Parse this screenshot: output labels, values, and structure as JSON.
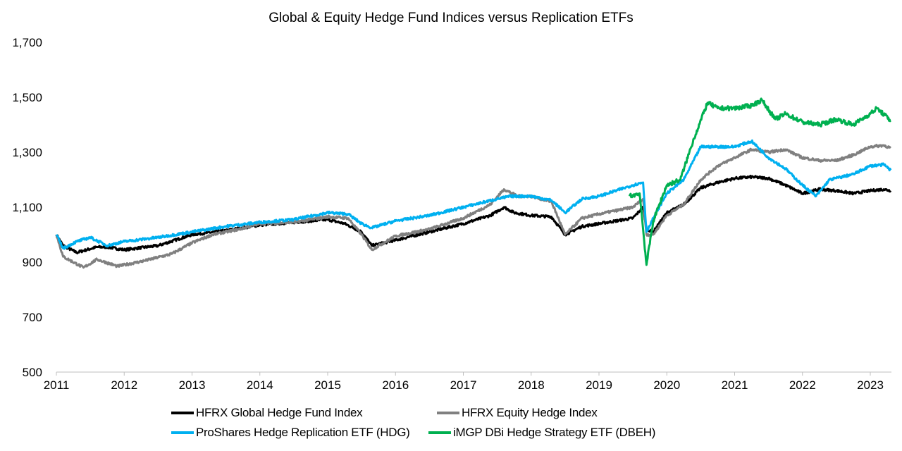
{
  "chart_data": {
    "type": "line",
    "title": "Global & Equity Hedge Fund Indices versus Replication ETFs",
    "xlabel": "",
    "ylabel": "",
    "xlim": [
      2011,
      2023.3
    ],
    "ylim": [
      500,
      1700
    ],
    "x_ticks": [
      "2011",
      "2012",
      "2013",
      "2014",
      "2015",
      "2016",
      "2017",
      "2018",
      "2019",
      "2020",
      "2021",
      "2022",
      "2023"
    ],
    "y_ticks": [
      "500",
      "700",
      "900",
      "1,100",
      "1,300",
      "1,500",
      "1,700"
    ],
    "y_tick_values": [
      500,
      700,
      900,
      1100,
      1300,
      1500,
      1700
    ],
    "grid": false,
    "legend_position": "bottom",
    "series": [
      {
        "name": "HFRX Global Hedge Fund Index",
        "color": "#000000",
        "x": [
          2011.0,
          2011.1,
          2011.3,
          2011.6,
          2011.75,
          2012.0,
          2012.5,
          2013.0,
          2013.5,
          2014.0,
          2014.5,
          2015.0,
          2015.25,
          2015.5,
          2015.65,
          2016.0,
          2016.5,
          2017.0,
          2017.4,
          2017.6,
          2017.75,
          2018.0,
          2018.3,
          2018.5,
          2018.75,
          2019.0,
          2019.5,
          2019.65,
          2019.7,
          2019.8,
          2020.0,
          2020.25,
          2020.5,
          2020.75,
          2021.0,
          2021.25,
          2021.5,
          2021.75,
          2022.0,
          2022.25,
          2022.5,
          2022.75,
          2023.0,
          2023.2,
          2023.3
        ],
        "y": [
          1000,
          960,
          935,
          955,
          955,
          945,
          960,
          1000,
          1015,
          1035,
          1045,
          1055,
          1040,
          1010,
          960,
          980,
          1010,
          1040,
          1070,
          1100,
          1080,
          1070,
          1065,
          1000,
          1030,
          1040,
          1060,
          1100,
          1020,
          1010,
          1080,
          1110,
          1170,
          1190,
          1205,
          1210,
          1205,
          1180,
          1150,
          1165,
          1160,
          1150,
          1160,
          1165,
          1160
        ]
      },
      {
        "name": "HFRX Equity Hedge Index",
        "color": "#808080",
        "x": [
          2011.0,
          2011.1,
          2011.4,
          2011.6,
          2011.9,
          2012.3,
          2012.7,
          2013.0,
          2013.3,
          2013.7,
          2014.0,
          2014.5,
          2015.0,
          2015.3,
          2015.5,
          2015.65,
          2016.0,
          2016.5,
          2017.0,
          2017.4,
          2017.6,
          2017.8,
          2018.0,
          2018.3,
          2018.5,
          2018.75,
          2019.0,
          2019.5,
          2019.65,
          2019.7,
          2019.8,
          2020.0,
          2020.25,
          2020.5,
          2020.75,
          2021.0,
          2021.25,
          2021.5,
          2021.75,
          2022.0,
          2022.25,
          2022.5,
          2022.75,
          2023.0,
          2023.2,
          2023.3
        ],
        "y": [
          1000,
          920,
          880,
          910,
          885,
          905,
          930,
          970,
          1000,
          1020,
          1040,
          1045,
          1065,
          1060,
          1000,
          945,
          995,
          1020,
          1060,
          1110,
          1165,
          1140,
          1140,
          1120,
          1000,
          1060,
          1075,
          1100,
          1130,
          1000,
          1000,
          1070,
          1110,
          1200,
          1250,
          1280,
          1310,
          1300,
          1310,
          1280,
          1270,
          1270,
          1290,
          1320,
          1325,
          1315
        ]
      },
      {
        "name": "ProShares Hedge Replication ETF (HDG)",
        "color": "#00B0F0",
        "x": [
          2011.0,
          2011.1,
          2011.3,
          2011.5,
          2011.75,
          2012.0,
          2012.5,
          2013.0,
          2013.5,
          2014.0,
          2014.5,
          2015.0,
          2015.3,
          2015.5,
          2015.65,
          2016.0,
          2016.5,
          2017.0,
          2017.5,
          2017.7,
          2018.0,
          2018.3,
          2018.5,
          2018.75,
          2019.0,
          2019.5,
          2019.65,
          2019.7,
          2019.8,
          2020.0,
          2020.25,
          2020.5,
          2020.75,
          2021.0,
          2021.25,
          2021.5,
          2021.75,
          2022.0,
          2022.2,
          2022.4,
          2022.75,
          2023.0,
          2023.2,
          2023.3
        ],
        "y": [
          1000,
          950,
          975,
          990,
          960,
          975,
          990,
          1010,
          1030,
          1045,
          1055,
          1080,
          1075,
          1040,
          1025,
          1050,
          1070,
          1100,
          1130,
          1140,
          1140,
          1125,
          1080,
          1130,
          1140,
          1180,
          1190,
          1010,
          1060,
          1150,
          1200,
          1320,
          1320,
          1320,
          1340,
          1280,
          1240,
          1180,
          1140,
          1200,
          1220,
          1250,
          1255,
          1235
        ]
      },
      {
        "name": "iMGP DBi Hedge Strategy ETF (DBEH)",
        "color": "#00B050",
        "x": [
          2019.45,
          2019.6,
          2019.7,
          2019.8,
          2020.0,
          2020.2,
          2020.4,
          2020.6,
          2020.75,
          2021.0,
          2021.25,
          2021.4,
          2021.6,
          2021.75,
          2022.0,
          2022.25,
          2022.5,
          2022.75,
          2023.0,
          2023.1,
          2023.3
        ],
        "y": [
          1140,
          1150,
          890,
          1050,
          1180,
          1200,
          1350,
          1480,
          1460,
          1460,
          1470,
          1490,
          1420,
          1440,
          1410,
          1400,
          1420,
          1400,
          1440,
          1460,
          1415
        ]
      }
    ]
  }
}
